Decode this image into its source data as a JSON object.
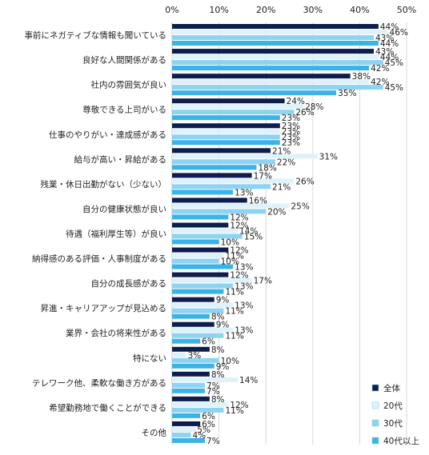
{
  "chart_data": {
    "type": "bar",
    "orientation": "horizontal",
    "title": "",
    "xlabel": "",
    "ylabel": "",
    "xlim": [
      0,
      50
    ],
    "ticks": [
      "0%",
      "10%",
      "20%",
      "30%",
      "40%",
      "50%"
    ],
    "tick_values": [
      0,
      10,
      20,
      30,
      40,
      50
    ],
    "grid": true,
    "legend_position": "bottom-right",
    "value_suffix": "%",
    "categories": [
      "事前にネガティブな情報も聞いている",
      "良好な人間関係がある",
      "社内の雰囲気が良い",
      "尊敬できる上司がいる",
      "仕事のやりがい・達成感がある",
      "給与が高い・昇給がある",
      "残業・休日出勤がない（少ない）",
      "自分の健康状態が良い",
      "待遇（福利厚生等）が良い",
      "納得感のある評価・人事制度がある",
      "自分の成長感がある",
      "昇進・キャリアアップが見込める",
      "業界・会社の将来性がある",
      "特にない",
      "テレワーク他、柔軟な働き方がある",
      "希望勤務地で働くことができる",
      "その他"
    ],
    "series": [
      {
        "name": "全体",
        "color": "#0d1e4c",
        "values": [
          44,
          43,
          38,
          24,
          23,
          21,
          17,
          16,
          12,
          12,
          12,
          9,
          9,
          8,
          8,
          8,
          6
        ]
      },
      {
        "name": "20代",
        "color": "#dff2fb",
        "values": [
          46,
          44,
          42,
          28,
          23,
          31,
          26,
          25,
          14,
          11,
          17,
          13,
          13,
          3,
          14,
          12,
          5
        ]
      },
      {
        "name": "30代",
        "color": "#8fd3f2",
        "values": [
          43,
          45,
          45,
          26,
          23,
          22,
          21,
          20,
          15,
          10,
          13,
          11,
          11,
          10,
          7,
          11,
          4
        ]
      },
      {
        "name": "40代以上",
        "color": "#3bb3e6",
        "values": [
          44,
          42,
          35,
          23,
          23,
          18,
          13,
          12,
          10,
          13,
          11,
          8,
          6,
          9,
          7,
          6,
          7
        ]
      }
    ]
  }
}
